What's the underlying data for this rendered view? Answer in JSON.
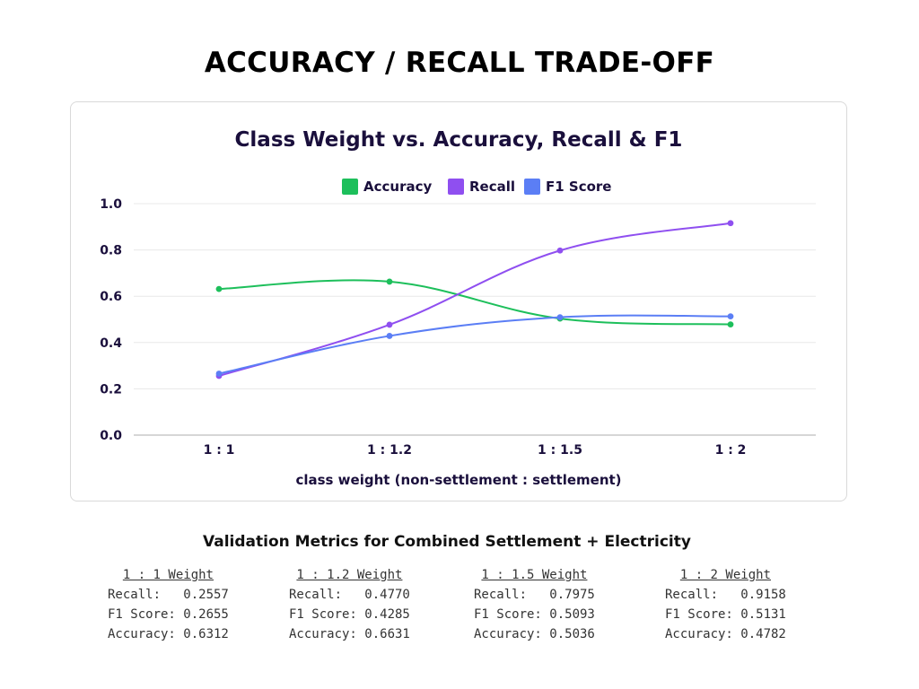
{
  "page": {
    "title": "ACCURACY / RECALL TRADE-OFF"
  },
  "chart_data": {
    "type": "line",
    "title": "Class Weight vs. Accuracy, Recall & F1",
    "xlabel": "class weight (non-settlement : settlement)",
    "ylabel": "",
    "categories": [
      "1 : 1",
      "1 : 1.2",
      "1 : 1.5",
      "1 : 2"
    ],
    "ylim": [
      0,
      1.0
    ],
    "yticks": [
      "0.0",
      "0.2",
      "0.4",
      "0.6",
      "0.8",
      "1.0"
    ],
    "grid": true,
    "legend_position": "top-center",
    "series": [
      {
        "name": "Accuracy",
        "color": "#1dbf5b",
        "values": [
          0.6312,
          0.6631,
          0.5036,
          0.4782
        ]
      },
      {
        "name": "Recall",
        "color": "#8f4ff0",
        "values": [
          0.2557,
          0.477,
          0.7975,
          0.9158
        ]
      },
      {
        "name": "F1 Score",
        "color": "#5b7ef5",
        "values": [
          0.2655,
          0.4285,
          0.5093,
          0.5131
        ]
      }
    ]
  },
  "metrics": {
    "heading": "Validation Metrics for Combined Settlement + Electricity",
    "blocks": [
      {
        "title": "1 : 1 Weight",
        "rows": [
          "Recall:   0.2557",
          "F1 Score: 0.2655",
          "Accuracy: 0.6312"
        ]
      },
      {
        "title": "1 : 1.2 Weight",
        "rows": [
          "Recall:   0.4770",
          "F1 Score: 0.4285",
          "Accuracy: 0.6631"
        ]
      },
      {
        "title": "1 : 1.5 Weight",
        "rows": [
          "Recall:   0.7975",
          "F1 Score: 0.5093",
          "Accuracy: 0.5036"
        ]
      },
      {
        "title": "1 : 2 Weight",
        "rows": [
          "Recall:   0.9158",
          "F1 Score: 0.5131",
          "Accuracy: 0.4782"
        ]
      }
    ]
  }
}
